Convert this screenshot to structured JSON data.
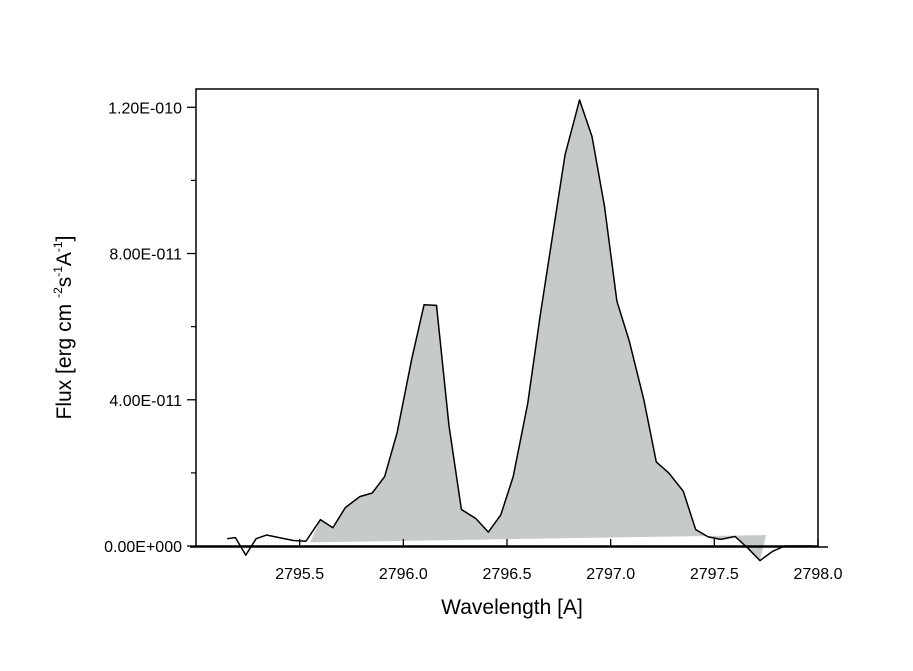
{
  "chart_data": {
    "type": "area",
    "xlabel": "Wavelength [A]",
    "ylabel_parts": [
      "Flux [erg cm",
      "-2",
      "s",
      "-1",
      "A",
      "-1",
      "]"
    ],
    "xlim": [
      2795.0,
      2798.0
    ],
    "ylim": [
      0,
      1.25e-10
    ],
    "xticks": [
      {
        "value": 2795.5,
        "label": "2795.5"
      },
      {
        "value": 2796.0,
        "label": "2796.0"
      },
      {
        "value": 2796.5,
        "label": "2796.5"
      },
      {
        "value": 2797.0,
        "label": "2797.0"
      },
      {
        "value": 2797.5,
        "label": "2797.5"
      },
      {
        "value": 2798.0,
        "label": "2798.0"
      }
    ],
    "yticks": [
      {
        "value": 0,
        "label": "0.00E+000"
      },
      {
        "value": 4e-11,
        "label": "4.00E-011"
      },
      {
        "value": 8e-11,
        "label": "8.00E-011"
      },
      {
        "value": 1.2e-10,
        "label": "1.20E-010"
      }
    ],
    "minor_yticks": [
      2e-11,
      6e-11,
      1e-10
    ],
    "fill_color": "#c6cbca",
    "line_color": "#000000",
    "x": [
      2795.15,
      2795.19,
      2795.24,
      2795.29,
      2795.34,
      2795.41,
      2795.47,
      2795.53,
      2795.6,
      2795.66,
      2795.72,
      2795.79,
      2795.85,
      2795.91,
      2795.97,
      2796.04,
      2796.1,
      2796.16,
      2796.22,
      2796.28,
      2796.35,
      2796.41,
      2796.47,
      2796.53,
      2796.6,
      2796.66,
      2796.72,
      2796.78,
      2796.85,
      2796.91,
      2796.97,
      2797.03,
      2797.09,
      2797.16,
      2797.22,
      2797.28,
      2797.35,
      2797.41,
      2797.47,
      2797.53,
      2797.6,
      2797.66,
      2797.72,
      2797.78,
      2797.84,
      2797.91,
      2797.97
    ],
    "y": [
      2e-12,
      2.3e-12,
      -2.5e-12,
      2e-12,
      3e-12,
      2.2e-12,
      1.5e-12,
      1.3e-12,
      7.2e-12,
      5e-12,
      1.05e-11,
      1.35e-11,
      1.45e-11,
      1.9e-11,
      3.1e-11,
      5.1e-11,
      6.6e-11,
      6.58e-11,
      3.3e-11,
      1e-11,
      7.5e-12,
      3.8e-12,
      8.5e-12,
      1.9e-11,
      3.9e-11,
      6.3e-11,
      8.5e-11,
      1.07e-10,
      1.22e-10,
      1.12e-10,
      9.3e-11,
      6.7e-11,
      5.6e-11,
      4e-11,
      2.3e-11,
      2e-11,
      1.5e-11,
      4.5e-12,
      2.5e-12,
      1.8e-12,
      2.6e-12,
      -5e-13,
      -4e-12,
      -1.5e-12,
      0,
      0,
      0
    ],
    "continuum": {
      "x": [
        2795.55,
        2797.75
      ],
      "y": [
        1e-12,
        3e-12
      ]
    },
    "fill_range": [
      2795.55,
      2797.75
    ]
  }
}
